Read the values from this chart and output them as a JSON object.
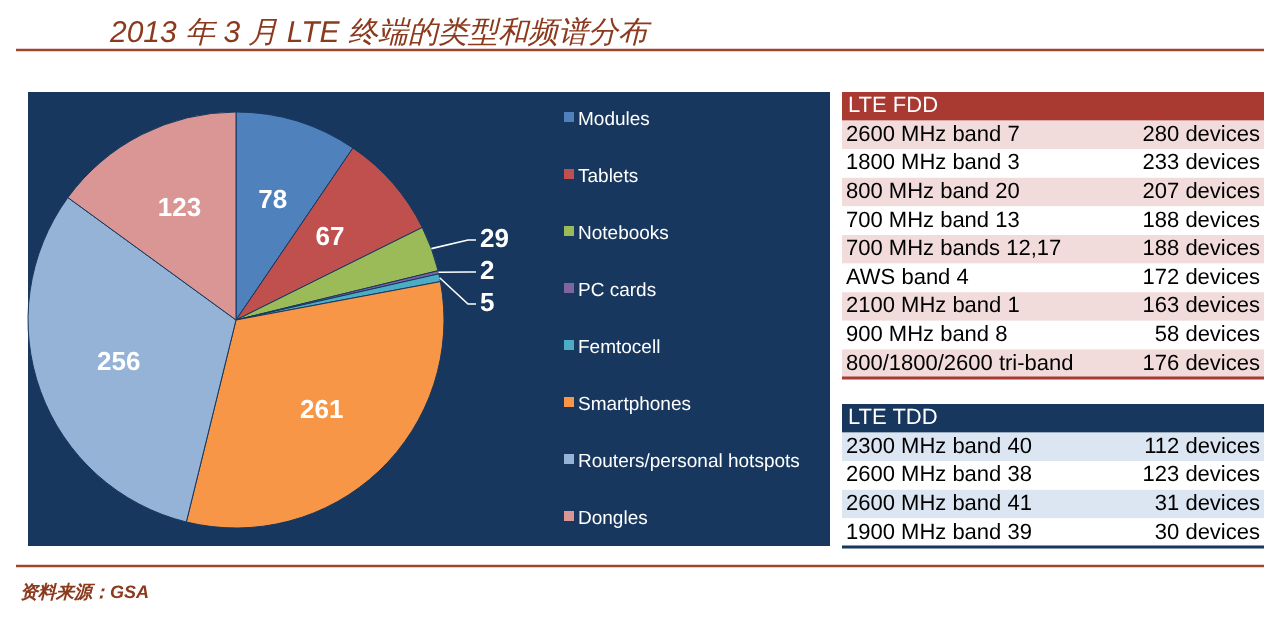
{
  "chart_data": [
    {
      "type": "pie",
      "title": "2013 年 3 月 LTE 终端的类型和频谱分布",
      "categories": [
        "Modules",
        "Tablets",
        "Notebooks",
        "PC cards",
        "Femtocell",
        "Smartphones",
        "Routers/personal hotspots",
        "Dongles"
      ],
      "values": [
        78,
        67,
        29,
        2,
        5,
        261,
        256,
        123
      ],
      "colors": [
        "#4f81bd",
        "#c0504d",
        "#9bbb59",
        "#8064a2",
        "#4bacc6",
        "#f79646",
        "#95b3d7",
        "#d99694"
      ],
      "data_labels": true,
      "legend": "right",
      "annotations": [
        "资料来源：GSA"
      ]
    },
    {
      "type": "other",
      "title": "LTE FDD",
      "annotations": [
        "2600 MHz band 7",
        "280 devices",
        "1800 MHz band 3",
        "233 devices",
        "800 MHz band 20",
        "207 devices",
        "700 MHz band 13",
        "188 devices",
        "700 MHz bands 12,17",
        "188 devices",
        "AWS band 4",
        "172 devices",
        "2100 MHz band 1",
        "163 devices",
        "900 MHz band 8",
        "58 devices",
        "800/1800/2600 tri-band",
        "176 devices"
      ]
    },
    {
      "type": "other",
      "title": "LTE TDD",
      "annotations": [
        "2300 MHz band 40",
        "112 devices",
        "2600 MHz band 38",
        "123 devices",
        "2600 MHz band 41",
        "31 devices",
        "1900 MHz band 39",
        "30 devices"
      ]
    }
  ]
}
